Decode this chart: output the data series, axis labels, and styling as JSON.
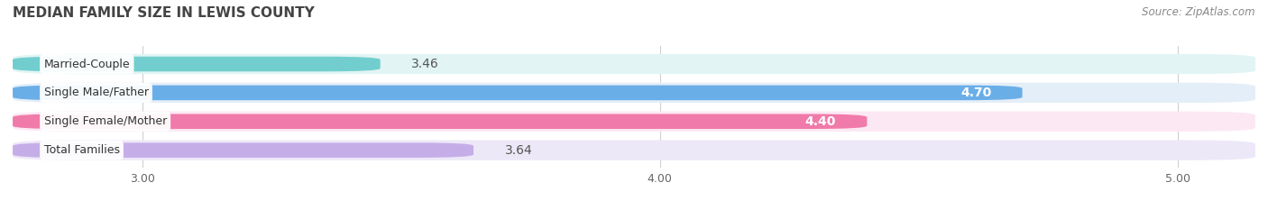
{
  "title": "MEDIAN FAMILY SIZE IN LEWIS COUNTY",
  "source": "Source: ZipAtlas.com",
  "categories": [
    "Married-Couple",
    "Single Male/Father",
    "Single Female/Mother",
    "Total Families"
  ],
  "values": [
    3.46,
    4.7,
    4.4,
    3.64
  ],
  "bar_colors": [
    "#72cece",
    "#6aaee8",
    "#f07aaa",
    "#c5aee8"
  ],
  "bar_bg_colors": [
    "#e2f4f4",
    "#e4eef8",
    "#fce8f3",
    "#ede8f8"
  ],
  "xlim": [
    2.75,
    5.15
  ],
  "xticks": [
    3.0,
    4.0,
    5.0
  ],
  "xtick_labels": [
    "3.00",
    "4.00",
    "5.00"
  ],
  "title_fontsize": 11,
  "source_fontsize": 8.5,
  "label_fontsize": 9,
  "value_fontsize": 10,
  "tick_fontsize": 9,
  "bg_color": "#ffffff"
}
